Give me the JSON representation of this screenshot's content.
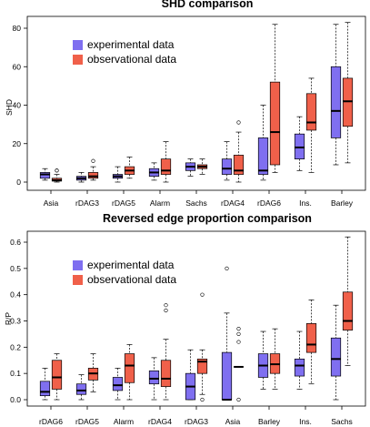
{
  "charts": [
    {
      "type": "boxplot",
      "title": "SHD comparison",
      "ylabel": "SHD",
      "xlabel": "",
      "ylim": [
        -2,
        86
      ],
      "yticks": [
        0,
        20,
        40,
        60,
        80
      ],
      "grid": false,
      "legend_position": "top-left",
      "series": [
        {
          "name": "experimental data",
          "color": "#7f6ff0"
        },
        {
          "name": "observational data",
          "color": "#f0604a"
        }
      ],
      "categories": [
        {
          "label": "Asia",
          "exp": {
            "min": 1,
            "q1": 2,
            "median": 4,
            "q3": 5,
            "max": 7,
            "outliers": []
          },
          "obs": {
            "min": 0,
            "q1": 0.5,
            "median": 1,
            "q3": 2,
            "max": 4,
            "outliers": [
              6,
              6
            ]
          }
        },
        {
          "label": "rDAG3",
          "exp": {
            "min": 0,
            "q1": 1,
            "median": 2,
            "q3": 3,
            "max": 5,
            "outliers": []
          },
          "obs": {
            "min": 1,
            "q1": 2,
            "median": 3,
            "q3": 5,
            "max": 8,
            "outliers": [
              11
            ]
          }
        },
        {
          "label": "rDAG5",
          "exp": {
            "min": 0,
            "q1": 2,
            "median": 3,
            "q3": 4,
            "max": 8,
            "outliers": []
          },
          "obs": {
            "min": 2,
            "q1": 4,
            "median": 6,
            "q3": 8,
            "max": 13,
            "outliers": []
          }
        },
        {
          "label": "Alarm",
          "exp": {
            "min": 1,
            "q1": 3,
            "median": 5,
            "q3": 7,
            "max": 10,
            "outliers": []
          },
          "obs": {
            "min": 0,
            "q1": 4,
            "median": 6,
            "q3": 12,
            "max": 21,
            "outliers": []
          }
        },
        {
          "label": "Sachs",
          "exp": {
            "min": 3,
            "q1": 6,
            "median": 8,
            "q3": 10,
            "max": 12,
            "outliers": []
          },
          "obs": {
            "min": 4,
            "q1": 7,
            "median": 8,
            "q3": 9,
            "max": 12,
            "outliers": []
          }
        },
        {
          "label": "rDAG4",
          "exp": {
            "min": 1,
            "q1": 4,
            "median": 7,
            "q3": 12,
            "max": 21,
            "outliers": []
          },
          "obs": {
            "min": 0,
            "q1": 4,
            "median": 6,
            "q3": 14,
            "max": 26,
            "outliers": [
              31
            ]
          }
        },
        {
          "label": "rDAG6",
          "exp": {
            "min": 1,
            "q1": 4,
            "median": 6,
            "q3": 23,
            "max": 40,
            "outliers": []
          },
          "obs": {
            "min": 5,
            "q1": 9,
            "median": 26,
            "q3": 52,
            "max": 82,
            "outliers": []
          }
        },
        {
          "label": "Ins.",
          "exp": {
            "min": 6,
            "q1": 12,
            "median": 18,
            "q3": 25,
            "max": 34,
            "outliers": []
          },
          "obs": {
            "min": 5,
            "q1": 27,
            "median": 31,
            "q3": 46,
            "max": 54,
            "outliers": []
          }
        },
        {
          "label": "Barley",
          "exp": {
            "min": 9,
            "q1": 23,
            "median": 37,
            "q3": 60,
            "max": 82,
            "outliers": []
          },
          "obs": {
            "min": 10,
            "q1": 29,
            "median": 42,
            "q3": 54,
            "max": 83,
            "outliers": []
          }
        }
      ]
    },
    {
      "type": "boxplot",
      "title": "Reversed edge proportion comparison",
      "ylabel": "R/P",
      "xlabel": "",
      "ylim": [
        -0.01,
        0.63
      ],
      "yticks": [
        0.0,
        0.1,
        0.2,
        0.3,
        0.4,
        0.5,
        0.6
      ],
      "grid": false,
      "legend_position": "top-left",
      "series": [
        {
          "name": "experimental data",
          "color": "#7f6ff0"
        },
        {
          "name": "observational data",
          "color": "#f0604a"
        }
      ],
      "categories": [
        {
          "label": "rDAG6",
          "exp": {
            "min": 0.0,
            "q1": 0.015,
            "median": 0.03,
            "q3": 0.07,
            "max": 0.12,
            "outliers": []
          },
          "obs": {
            "min": 0.0,
            "q1": 0.04,
            "median": 0.085,
            "q3": 0.15,
            "max": 0.175,
            "outliers": []
          }
        },
        {
          "label": "rDAG5",
          "exp": {
            "min": 0.0,
            "q1": 0.02,
            "median": 0.035,
            "q3": 0.06,
            "max": 0.095,
            "outliers": []
          },
          "obs": {
            "min": 0.03,
            "q1": 0.075,
            "median": 0.1,
            "q3": 0.12,
            "max": 0.175,
            "outliers": []
          }
        },
        {
          "label": "Alarm",
          "exp": {
            "min": 0.0,
            "q1": 0.035,
            "median": 0.055,
            "q3": 0.085,
            "max": 0.12,
            "outliers": []
          },
          "obs": {
            "min": 0.0,
            "q1": 0.065,
            "median": 0.13,
            "q3": 0.175,
            "max": 0.21,
            "outliers": []
          }
        },
        {
          "label": "rDAG4",
          "exp": {
            "min": 0.0,
            "q1": 0.06,
            "median": 0.08,
            "q3": 0.11,
            "max": 0.16,
            "outliers": []
          },
          "obs": {
            "min": 0.0,
            "q1": 0.05,
            "median": 0.08,
            "q3": 0.15,
            "max": 0.23,
            "outliers": [
              0.34,
              0.36
            ]
          }
        },
        {
          "label": "rDAG3",
          "exp": {
            "min": 0.0,
            "q1": 0.0,
            "median": 0.05,
            "q3": 0.1,
            "max": 0.19,
            "outliers": []
          },
          "obs": {
            "min": 0.02,
            "q1": 0.1,
            "median": 0.145,
            "q3": 0.155,
            "max": 0.19,
            "outliers": [
              0.0,
              0.4
            ]
          }
        },
        {
          "label": "Asia",
          "exp": {
            "min": 0.0,
            "q1": 0.0,
            "median": 0.0,
            "q3": 0.18,
            "max": 0.33,
            "outliers": [
              0.5
            ]
          },
          "obs": {
            "min": 0.125,
            "q1": 0.125,
            "median": 0.125,
            "q3": 0.125,
            "max": 0.125,
            "outliers": [
              0.0,
              0.22,
              0.25,
              0.27
            ]
          }
        },
        {
          "label": "Barley",
          "exp": {
            "min": 0.04,
            "q1": 0.085,
            "median": 0.13,
            "q3": 0.175,
            "max": 0.26,
            "outliers": []
          },
          "obs": {
            "min": 0.04,
            "q1": 0.1,
            "median": 0.135,
            "q3": 0.175,
            "max": 0.27,
            "outliers": []
          }
        },
        {
          "label": "Ins.",
          "exp": {
            "min": 0.04,
            "q1": 0.09,
            "median": 0.13,
            "q3": 0.155,
            "max": 0.26,
            "outliers": []
          },
          "obs": {
            "min": 0.06,
            "q1": 0.18,
            "median": 0.21,
            "q3": 0.29,
            "max": 0.38,
            "outliers": []
          }
        },
        {
          "label": "Sachs",
          "exp": {
            "min": 0.0,
            "q1": 0.09,
            "median": 0.155,
            "q3": 0.235,
            "max": 0.36,
            "outliers": []
          },
          "obs": {
            "min": 0.13,
            "q1": 0.265,
            "median": 0.3,
            "q3": 0.41,
            "max": 0.62,
            "outliers": []
          }
        }
      ]
    }
  ]
}
